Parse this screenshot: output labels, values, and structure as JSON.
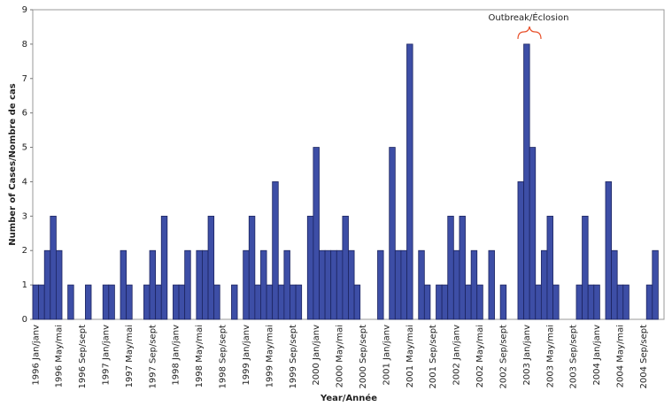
{
  "chart_data": {
    "type": "bar",
    "y_label": "Number of Cases/Nombre de cas",
    "x_label": "Year/Année",
    "annotation": "Outbreak/Éclosion",
    "color": "#3d4ea6",
    "ylim": [
      0,
      9
    ],
    "yticks": [
      0,
      1,
      2,
      3,
      4,
      5,
      6,
      7,
      8,
      9
    ],
    "categories": [
      "1996 Jan/janv",
      null,
      null,
      null,
      "1996 May/mai",
      null,
      null,
      null,
      "1996 Sep/sept",
      null,
      null,
      null,
      "1997 Jan/janv",
      null,
      null,
      null,
      "1997 May/mai",
      null,
      null,
      null,
      "1997 Sep/sept",
      null,
      null,
      null,
      "1998 Jan/janv",
      null,
      null,
      null,
      "1998 May/mai",
      null,
      null,
      null,
      "1998 Sep/sept",
      null,
      null,
      null,
      "1999 Jan/janv",
      null,
      null,
      null,
      "1999 May/mai",
      null,
      null,
      null,
      "1999 Sep/sept",
      null,
      null,
      null,
      "2000 Jan/janv",
      null,
      null,
      null,
      "2000 May/mai",
      null,
      null,
      null,
      "2000 Sep/sept",
      null,
      null,
      null,
      "2001 Jan/janv",
      null,
      null,
      null,
      "2001 May/mai",
      null,
      null,
      null,
      "2001 Sep/sept",
      null,
      null,
      null,
      "2002 Jan/janv",
      null,
      null,
      null,
      "2002 May/mai",
      null,
      null,
      null,
      "2002 Sep/sept",
      null,
      null,
      null,
      "2003 Jan/janv",
      null,
      null,
      null,
      "2003 May/mai",
      null,
      null,
      null,
      "2003 Sep/sept",
      null,
      null,
      null,
      "2004 Jan/janv",
      null,
      null,
      null,
      "2004 May/mai",
      null,
      null,
      null,
      "2004 Sep/sept",
      null,
      null,
      null
    ],
    "values": [
      1,
      1,
      2,
      3,
      2,
      0,
      1,
      0,
      0,
      1,
      0,
      0,
      1,
      1,
      0,
      2,
      1,
      0,
      0,
      1,
      2,
      1,
      3,
      0,
      1,
      1,
      2,
      0,
      2,
      2,
      3,
      1,
      0,
      0,
      1,
      0,
      2,
      3,
      1,
      2,
      1,
      4,
      1,
      2,
      1,
      1,
      0,
      3,
      5,
      2,
      2,
      2,
      2,
      3,
      2,
      1,
      0,
      0,
      0,
      2,
      0,
      5,
      2,
      2,
      8,
      0,
      2,
      1,
      0,
      1,
      1,
      3,
      2,
      3,
      1,
      2,
      1,
      0,
      2,
      0,
      1,
      0,
      0,
      4,
      8,
      5,
      1,
      2,
      3,
      1,
      0,
      0,
      0,
      1,
      3,
      1,
      1,
      0,
      4,
      2,
      1,
      1,
      0,
      0,
      0,
      1,
      2,
      0
    ]
  }
}
